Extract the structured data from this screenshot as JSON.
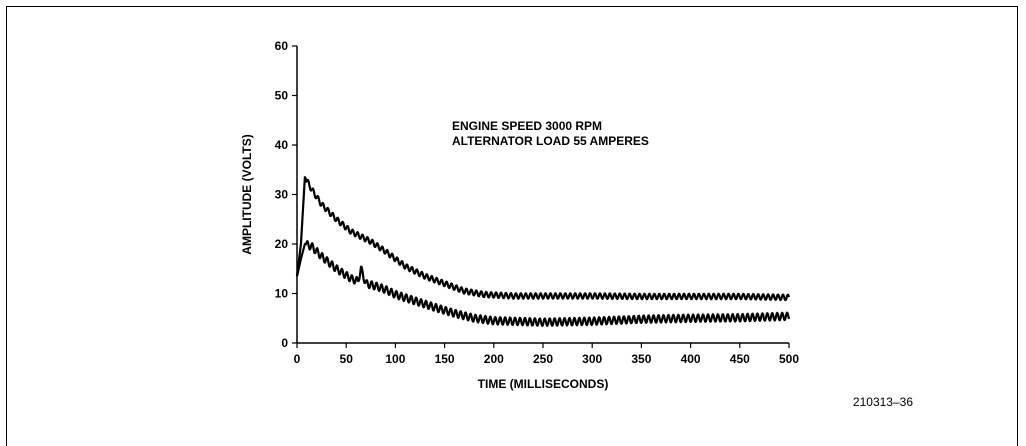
{
  "chart_data": {
    "type": "line",
    "xlabel": "TIME (MILLISECONDS)",
    "ylabel": "AMPLITUDE (VOLTS)",
    "xlim": [
      0,
      500
    ],
    "ylim": [
      0,
      60
    ],
    "x_ticks": [
      "0",
      "50",
      "100",
      "150",
      "200",
      "250",
      "300",
      "350",
      "400",
      "450",
      "500"
    ],
    "y_ticks": [
      "0",
      "10",
      "20",
      "30",
      "40",
      "50",
      "60"
    ],
    "annotations": [
      "ENGINE SPEED 3000 RPM",
      "ALTERNATOR LOAD 55 AMPERES"
    ],
    "grid": false,
    "series": [
      {
        "x": [
          0,
          4,
          8,
          15,
          25,
          40,
          55,
          65,
          75,
          90,
          110,
          130,
          150,
          170,
          190,
          220,
          260,
          300,
          350,
          400,
          450,
          500
        ],
        "values": [
          13.5,
          20,
          33.5,
          31,
          28,
          25,
          22.5,
          21.5,
          20.5,
          18.5,
          15.5,
          13.5,
          12,
          10.5,
          9.8,
          9.5,
          9.5,
          9.5,
          9.4,
          9.4,
          9.4,
          9.2
        ]
      },
      {
        "x": [
          0,
          4,
          8,
          15,
          25,
          40,
          55,
          62,
          65,
          70,
          80,
          90,
          100,
          120,
          140,
          160,
          180,
          200,
          250,
          300,
          350,
          400,
          450,
          500
        ],
        "values": [
          13.5,
          17,
          20,
          19.5,
          17.5,
          15,
          13,
          12.5,
          15,
          12,
          11.5,
          10.8,
          9.8,
          8.5,
          7.2,
          6,
          5,
          4.5,
          4.2,
          4.4,
          4.8,
          5,
          5.1,
          5.4
        ]
      }
    ]
  },
  "figure_id": "210313–36"
}
